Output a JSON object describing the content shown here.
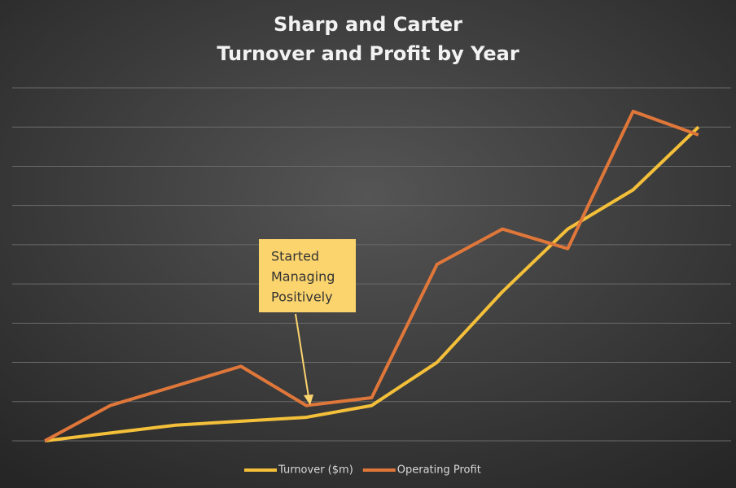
{
  "chart_data": {
    "type": "line",
    "title": "Sharp and Carter",
    "subtitle": "Turnover and Profit by Year",
    "categories": [
      null,
      null,
      null,
      null,
      null,
      null,
      null,
      null,
      null,
      null,
      null
    ],
    "series": [
      {
        "name": "Turnover ($m)",
        "color": "#f4c03a",
        "values": [
          0,
          0.2,
          0.4,
          0.5,
          0.6,
          0.9,
          2.0,
          3.8,
          5.4,
          6.4,
          8.0
        ]
      },
      {
        "name": "Operating Profit",
        "color": "#e0773a",
        "values": [
          0,
          0.9,
          1.4,
          1.9,
          0.9,
          1.1,
          4.5,
          5.4,
          4.9,
          8.4,
          7.8
        ]
      }
    ],
    "ylim": [
      0,
      9
    ],
    "yticks": [
      0,
      1,
      2,
      3,
      4,
      5,
      6,
      7,
      8,
      9
    ],
    "grid": true,
    "legend": "bottom",
    "annotations": [
      {
        "lines": [
          "Started",
          "Managing",
          "Positively"
        ],
        "color": "#fbd46e"
      }
    ]
  }
}
